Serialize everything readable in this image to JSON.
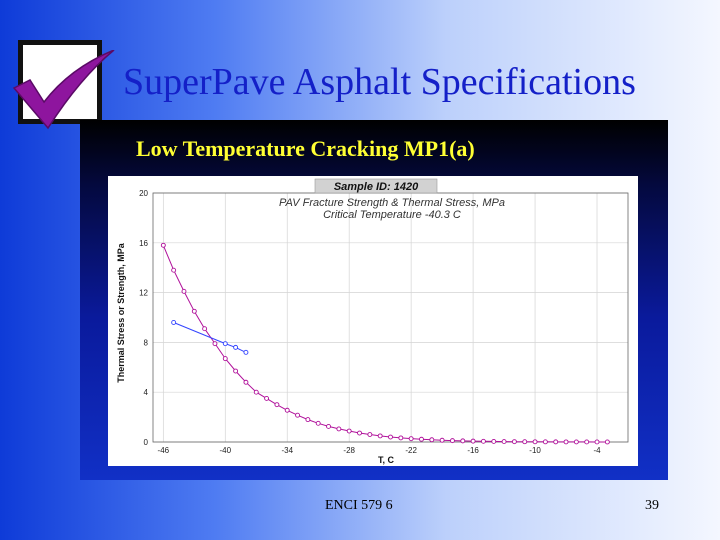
{
  "slide": {
    "title": "SuperPave Asphalt Specifications",
    "panel_title": "Low Temperature Cracking MP1(a)",
    "footer_center": "ENCI 579 6",
    "page_number": "39",
    "checkbox_icon": "checkmark-icon",
    "colors": {
      "title": "#1420c8",
      "panel_title": "#ffff33",
      "checkmark": "#8e159e",
      "stress_series": "#b0109a",
      "strength_series": "#3344ff"
    }
  },
  "chart_data": {
    "type": "line",
    "sample_id": "Sample ID: 1420",
    "annotation_line1": "PAV Fracture Strength & Thermal Stress, MPa",
    "annotation_line2": "Critical Temperature -40.3 C",
    "xlabel": "T, C",
    "ylabel": "Thermal Stress or Strength, MPa",
    "xlim": [
      -47,
      -1
    ],
    "ylim": [
      0,
      20
    ],
    "x_ticks": [
      -46,
      -40,
      -34,
      -28,
      -22,
      -16,
      -10,
      -4
    ],
    "y_ticks": [
      0,
      4,
      8,
      12,
      16,
      20
    ],
    "grid": true,
    "series": [
      {
        "x": [
          -46,
          -45,
          -44,
          -43,
          -42,
          -41,
          -40,
          -39,
          -38,
          -37,
          -36,
          -35,
          -34,
          -33,
          -32,
          -31,
          -30,
          -29,
          -28,
          -27,
          -26,
          -25,
          -24,
          -23,
          -22,
          -21,
          -20,
          -19,
          -18,
          -17,
          -16,
          -15,
          -14,
          -13,
          -12,
          -11,
          -10,
          -9,
          -8,
          -7,
          -6,
          -5,
          -4,
          -3
        ],
        "y": [
          15.8,
          13.8,
          12.1,
          10.5,
          9.1,
          7.9,
          6.7,
          5.7,
          4.8,
          4.0,
          3.5,
          3.0,
          2.55,
          2.15,
          1.8,
          1.5,
          1.25,
          1.05,
          0.88,
          0.72,
          0.6,
          0.49,
          0.4,
          0.33,
          0.27,
          0.22,
          0.18,
          0.14,
          0.11,
          0.09,
          0.07,
          0.055,
          0.045,
          0.035,
          0.028,
          0.022,
          0.017,
          0.013,
          0.01,
          0.008,
          0.006,
          0.005,
          0.004,
          0.003
        ]
      },
      {
        "x": [
          -45,
          -40,
          -39,
          -38
        ],
        "y": [
          9.6,
          7.9,
          7.6,
          7.2
        ]
      }
    ]
  }
}
